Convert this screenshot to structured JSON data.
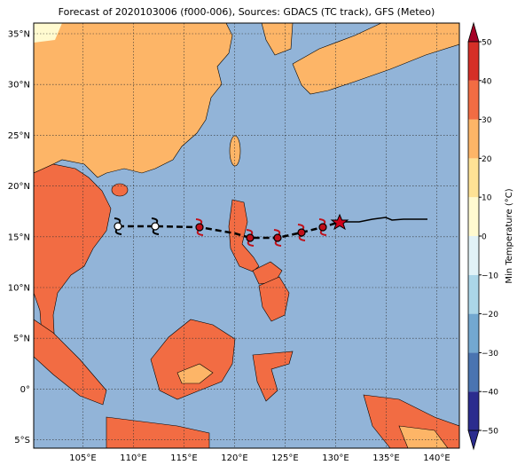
{
  "title": "Forecast of 2020103006 (f000-006), Sources: GDACS (TC track), GFS (Meteo)",
  "lat_labels": [
    "35°N",
    "30°N",
    "25°N",
    "20°N",
    "15°N",
    "10°N",
    "5°N",
    "0°",
    "5°S"
  ],
  "lon_labels": [
    "105°E",
    "110°E",
    "115°E",
    "120°E",
    "125°E",
    "130°E",
    "135°E",
    "140°E"
  ],
  "colorbar": {
    "label": "Min Temperature (°C)",
    "ticks": [
      {
        "value": -50,
        "label": "−50"
      },
      {
        "value": -40,
        "label": "−40"
      },
      {
        "value": -30,
        "label": "−30"
      },
      {
        "value": -20,
        "label": "−20"
      },
      {
        "value": -10,
        "label": "−10"
      },
      0,
      10,
      20,
      30,
      40,
      50
    ],
    "colors": [
      "#2b2c8e",
      "#4a74b1",
      "#73a8d0",
      "#abd6e8",
      "#e1f2f7",
      "#fffad0",
      "#fee295",
      "#fdb567",
      "#f26c43",
      "#d52f27",
      "#a50026"
    ]
  }
}
